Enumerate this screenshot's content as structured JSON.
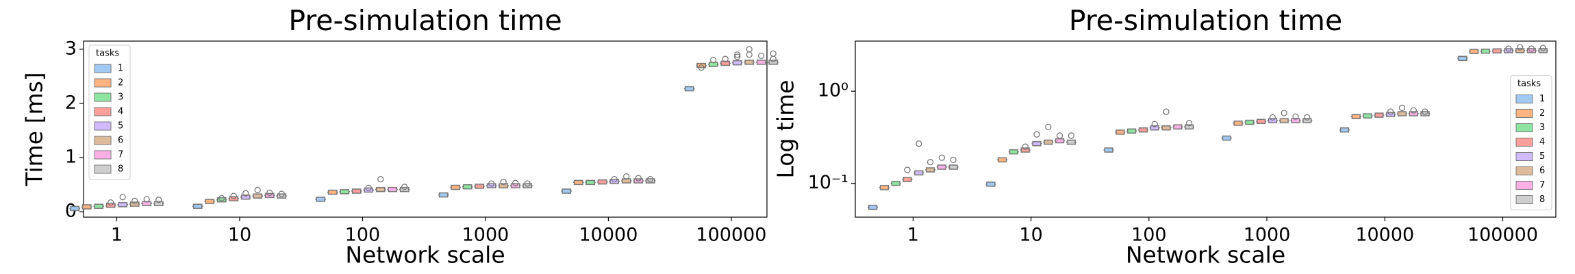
{
  "chart_data": [
    {
      "type": "box",
      "title": "Pre-simulation time",
      "x_label": "Network scale",
      "y_label": "Time [ms]",
      "categories": [
        "1",
        "10",
        "100",
        "1000",
        "10000",
        "100000"
      ],
      "ylim": [
        -0.1,
        3.15
      ],
      "yticks": [
        0,
        1,
        2,
        3
      ],
      "log_y": false,
      "legend_title": "tasks",
      "legend_loc": "upper left",
      "series": [
        {
          "name": "1",
          "color": "#a1c9f4",
          "values": [
            0.06,
            0.1,
            0.23,
            0.31,
            0.38,
            2.27
          ],
          "outliers": [
            [],
            [],
            [],
            [],
            [],
            []
          ]
        },
        {
          "name": "2",
          "color": "#ffb482",
          "values": [
            0.09,
            0.19,
            0.36,
            0.45,
            0.54,
            2.7
          ],
          "outliers": [
            [],
            [],
            [],
            [],
            [],
            [
              2.66
            ]
          ]
        },
        {
          "name": "3",
          "color": "#8de5a1",
          "values": [
            0.1,
            0.22,
            0.37,
            0.46,
            0.54,
            2.72
          ],
          "outliers": [
            [],
            [
              0.25
            ],
            [],
            [],
            [],
            [
              2.8
            ]
          ]
        },
        {
          "name": "4",
          "color": "#ff9f9b",
          "values": [
            0.12,
            0.24,
            0.38,
            0.47,
            0.55,
            2.74
          ],
          "outliers": [
            [
              0.17
            ],
            [
              0.29
            ],
            [],
            [],
            [],
            [
              2.82
            ]
          ]
        },
        {
          "name": "5",
          "color": "#d0bbff",
          "values": [
            0.13,
            0.27,
            0.4,
            0.48,
            0.56,
            2.75
          ],
          "outliers": [
            [
              0.27
            ],
            [
              0.34
            ],
            [
              0.44
            ],
            [
              0.52
            ],
            [
              0.6
            ],
            [
              2.86,
              2.9
            ]
          ]
        },
        {
          "name": "6",
          "color": "#debb9b",
          "values": [
            0.14,
            0.29,
            0.41,
            0.48,
            0.57,
            2.76
          ],
          "outliers": [
            [
              0.2
            ],
            [
              0.4
            ],
            [
              0.6
            ],
            [
              0.55
            ],
            [
              0.65
            ],
            [
              3.0,
              2.9
            ]
          ]
        },
        {
          "name": "7",
          "color": "#fab0e4",
          "values": [
            0.15,
            0.3,
            0.41,
            0.48,
            0.57,
            2.76
          ],
          "outliers": [
            [
              0.23
            ],
            [
              0.35
            ],
            [],
            [
              0.53
            ],
            [
              0.62
            ],
            [
              2.88
            ]
          ]
        },
        {
          "name": "8",
          "color": "#cfcfcf",
          "values": [
            0.15,
            0.29,
            0.41,
            0.48,
            0.57,
            2.76
          ],
          "outliers": [
            [
              0.22
            ],
            [
              0.33
            ],
            [
              0.46
            ],
            [
              0.52
            ],
            [
              0.6
            ],
            [
              2.92,
              2.82
            ]
          ]
        }
      ]
    },
    {
      "type": "box",
      "title": "Pre-simulation time",
      "x_label": "Network scale",
      "y_label": "Log time",
      "categories": [
        "1",
        "10",
        "100",
        "1000",
        "10000",
        "100000"
      ],
      "ylim": [
        0.043,
        3.5
      ],
      "yticks": [
        {
          "value": 0.1,
          "label": "10⁻¹"
        },
        {
          "value": 1,
          "label": "10⁰"
        }
      ],
      "log_y": true,
      "legend_title": "tasks",
      "legend_loc": "center right",
      "series": [
        {
          "name": "1",
          "color": "#a1c9f4",
          "values": [
            0.055,
            0.098,
            0.23,
            0.31,
            0.38,
            2.27
          ],
          "outliers": [
            [],
            [],
            [],
            [],
            [],
            []
          ]
        },
        {
          "name": "2",
          "color": "#ffb482",
          "values": [
            0.09,
            0.18,
            0.36,
            0.45,
            0.53,
            2.7
          ],
          "outliers": [
            [],
            [],
            [],
            [],
            [],
            []
          ]
        },
        {
          "name": "3",
          "color": "#8de5a1",
          "values": [
            0.1,
            0.22,
            0.37,
            0.46,
            0.54,
            2.72
          ],
          "outliers": [
            [],
            [],
            [],
            [],
            [],
            []
          ]
        },
        {
          "name": "4",
          "color": "#ff9f9b",
          "values": [
            0.11,
            0.23,
            0.38,
            0.47,
            0.55,
            2.74
          ],
          "outliers": [
            [
              0.14
            ],
            [
              0.25
            ],
            [],
            [],
            [],
            []
          ]
        },
        {
          "name": "5",
          "color": "#d0bbff",
          "values": [
            0.13,
            0.27,
            0.4,
            0.48,
            0.56,
            2.75
          ],
          "outliers": [
            [
              0.27
            ],
            [
              0.34
            ],
            [
              0.44
            ],
            [
              0.52
            ],
            [
              0.6
            ],
            [
              2.9
            ]
          ]
        },
        {
          "name": "6",
          "color": "#debb9b",
          "values": [
            0.14,
            0.28,
            0.4,
            0.48,
            0.57,
            2.76
          ],
          "outliers": [
            [
              0.17
            ],
            [
              0.41
            ],
            [
              0.6
            ],
            [
              0.58
            ],
            [
              0.66
            ],
            [
              3.0
            ]
          ]
        },
        {
          "name": "7",
          "color": "#fab0e4",
          "values": [
            0.15,
            0.29,
            0.41,
            0.48,
            0.57,
            2.76
          ],
          "outliers": [
            [
              0.19
            ],
            [
              0.33
            ],
            [],
            [
              0.53
            ],
            [
              0.62
            ],
            [
              2.9
            ]
          ]
        },
        {
          "name": "8",
          "color": "#cfcfcf",
          "values": [
            0.15,
            0.28,
            0.41,
            0.48,
            0.57,
            2.76
          ],
          "outliers": [
            [
              0.18
            ],
            [
              0.33
            ],
            [
              0.45
            ],
            [
              0.52
            ],
            [
              0.6
            ],
            [
              2.95
            ]
          ]
        }
      ]
    }
  ]
}
